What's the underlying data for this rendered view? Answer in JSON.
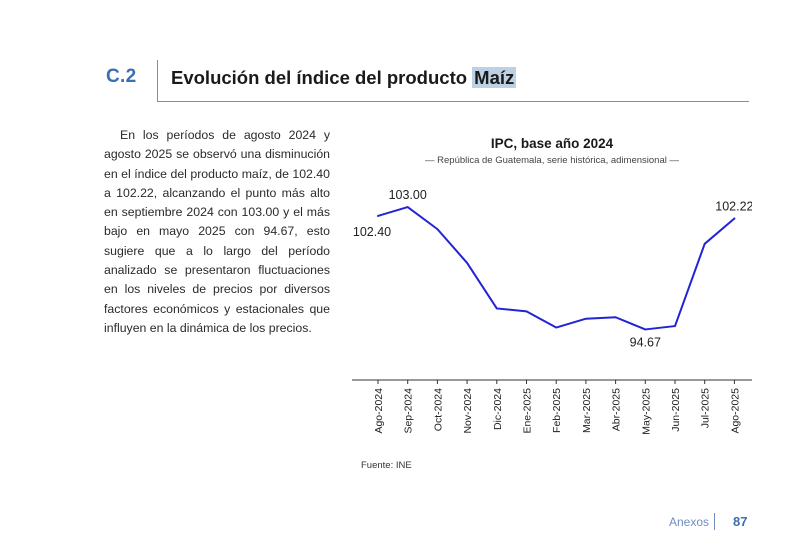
{
  "section": {
    "number": "C.2",
    "title_prefix": "Evolución del índice del producto ",
    "title_highlight": "Maíz"
  },
  "paragraph": "En los períodos de agosto 2024 y agosto 2025 se observó una disminución en el índice del producto maíz, de 102.40 a 102.22, alcanzando el punto más alto en septiembre 2024 con 103.00 y el más bajo en mayo 2025 con 94.67, esto sugiere que a lo largo del período analizado se presentaron fluctuaciones en los niveles de precios por diversos factores económicos y estacionales que influyen en la dinámica de los precios.",
  "source": "Fuente: INE",
  "footer": {
    "label": "Anexos",
    "page": "87"
  },
  "colors": {
    "line": "#2323d6",
    "accent": "#3a6fb5",
    "rule": "#6f8fc2"
  },
  "chart_data": {
    "type": "line",
    "title": "IPC, base año 2024",
    "subtitle": "— República de Guatemala, serie histórica, adimensional —",
    "categories": [
      "Ago-2024",
      "Sep-2024",
      "Oct-2024",
      "Nov-2024",
      "Dic-2024",
      "Ene-2025",
      "Feb-2025",
      "Mar-2025",
      "Abr-2025",
      "May-2025",
      "Jun-2025",
      "Jul-2025",
      "Ago-2025"
    ],
    "values": [
      102.4,
      103.0,
      101.5,
      99.2,
      96.1,
      95.9,
      94.8,
      95.4,
      95.5,
      94.67,
      94.9,
      100.5,
      102.22
    ],
    "data_labels": [
      {
        "index": 0,
        "text": "102.40",
        "position": "below-left"
      },
      {
        "index": 1,
        "text": "103.00",
        "position": "above"
      },
      {
        "index": 9,
        "text": "94.67",
        "position": "below"
      },
      {
        "index": 12,
        "text": "102.22",
        "position": "above"
      }
    ],
    "ylim": [
      91.5,
      104.3
    ],
    "xlabel": "",
    "ylabel": "",
    "grid": false,
    "legend": "none",
    "y_axis_visible": false
  }
}
